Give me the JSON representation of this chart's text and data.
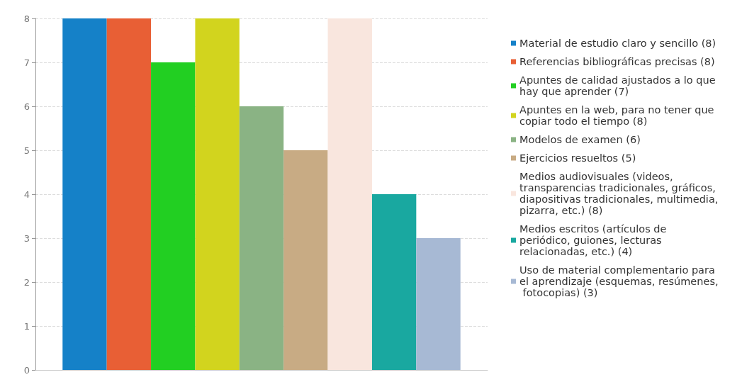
{
  "chart_data": {
    "type": "bar",
    "categories": [
      null
    ],
    "series": [
      {
        "name": "Material de estudio claro y sencillo (8)",
        "color": "#1581c8",
        "values": [
          8
        ]
      },
      {
        "name": "Referencias bibliográficas precisas (8)",
        "color": "#e85f35",
        "values": [
          8
        ]
      },
      {
        "name": "Apuntes de calidad ajustados a lo que hay que aprender (7)",
        "color": "#22cf22",
        "values": [
          7
        ]
      },
      {
        "name": "Apuntes en la web, para no tener que copiar todo el tiempo (8)",
        "color": "#d2d41e",
        "values": [
          8
        ]
      },
      {
        "name": "Modelos de examen (6)",
        "color": "#8ab384",
        "values": [
          6
        ]
      },
      {
        "name": "Ejercicios resueltos (5)",
        "color": "#c8ab84",
        "values": [
          5
        ]
      },
      {
        "name": "Medios audiovisuales (videos, transparencias tradicionales, gráficos, diapositivas tradicionales, multimedia, pizarra, etc.) (8)",
        "color": "#f9e6de",
        "values": [
          8
        ]
      },
      {
        "name": "Medios escritos (artículos de periódico, guiones, lecturas relacionadas, etc.) (4)",
        "color": "#19a8a0",
        "values": [
          4
        ]
      },
      {
        "name": "Uso de material complementario para el aprendizaje (esquemas, resúmenes, fotocopias) (3)",
        "color": "#a7b9d4",
        "values": [
          3
        ]
      }
    ],
    "ylim": [
      0,
      8
    ],
    "yticks": [
      0,
      1,
      2,
      3,
      4,
      5,
      6,
      7,
      8
    ],
    "grid": "y",
    "legend": "right"
  }
}
